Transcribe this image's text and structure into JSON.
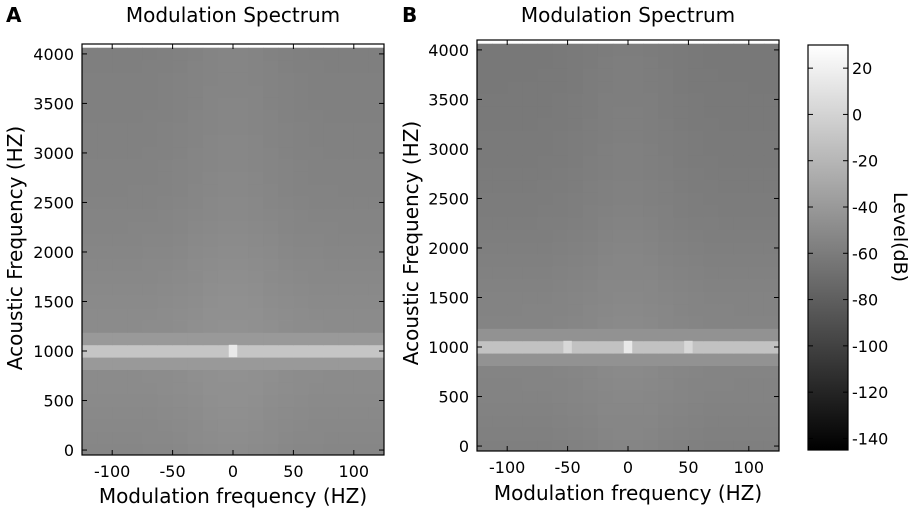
{
  "chart_data": [
    {
      "type": "heatmap",
      "panel_label": "A",
      "title": "Modulation Spectrum",
      "xlabel": "Modulation frequency (HZ)",
      "ylabel": "Acoustic Frequency (HZ)",
      "xlim": [
        -125,
        125
      ],
      "ylim": [
        -50,
        4100
      ],
      "x_ticks": [
        -100,
        -50,
        0,
        50,
        100
      ],
      "y_ticks": [
        0,
        500,
        1000,
        1500,
        2000,
        2500,
        3000,
        3500,
        4000
      ],
      "x_bin_width": 12.5,
      "y_bin_width": 125,
      "background_level_db": -55,
      "band": {
        "y_center": 1000,
        "level_db": -10,
        "edge_level_db": -40
      },
      "peaks": [
        {
          "x": 0,
          "y": 1000,
          "level_db": 15
        }
      ]
    },
    {
      "type": "heatmap",
      "panel_label": "B",
      "title": "Modulation Spectrum",
      "xlabel": "Modulation frequency (HZ)",
      "ylabel": "Acoustic Frequency (HZ)",
      "xlim": [
        -125,
        125
      ],
      "ylim": [
        -50,
        4100
      ],
      "x_ticks": [
        -100,
        -50,
        0,
        50,
        100
      ],
      "y_ticks": [
        0,
        500,
        1000,
        1500,
        2000,
        2500,
        3000,
        3500,
        4000
      ],
      "x_bin_width": 12.5,
      "y_bin_width": 125,
      "background_level_db": -60,
      "band": {
        "y_center": 1000,
        "level_db": -12,
        "edge_level_db": -45
      },
      "peaks": [
        {
          "x": 0,
          "y": 1000,
          "level_db": 15
        },
        {
          "x": -50,
          "y": 1000,
          "level_db": 3
        },
        {
          "x": 50,
          "y": 1000,
          "level_db": 3
        }
      ]
    }
  ],
  "colorbar": {
    "label": "Level(dB)",
    "range": [
      -145,
      30
    ],
    "ticks": [
      20,
      0,
      -20,
      -40,
      -60,
      -80,
      -100,
      -120,
      -140
    ],
    "colormap": "gray"
  }
}
